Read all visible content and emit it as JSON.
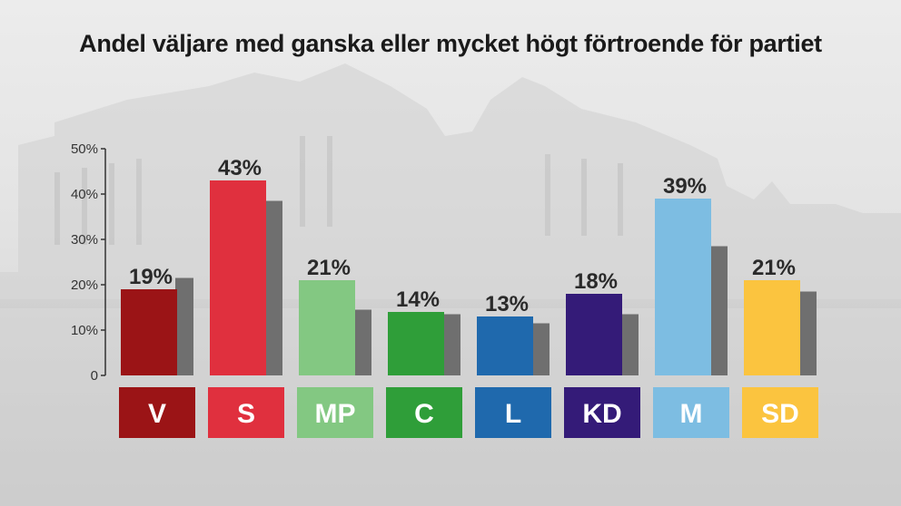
{
  "chart_data": {
    "type": "bar",
    "title": "Andel väljare med ganska eller mycket högt förtroende för partiet",
    "xlabel": "",
    "ylabel": "",
    "ylim": [
      0,
      50
    ],
    "yticks": [
      "0",
      "10%",
      "20%",
      "30%",
      "40%",
      "50%"
    ],
    "categories": [
      "V",
      "S",
      "MP",
      "C",
      "L",
      "KD",
      "M",
      "SD"
    ],
    "series": [
      {
        "values": [
          19,
          43,
          21,
          14,
          13,
          18,
          39,
          21
        ]
      },
      {
        "values": [
          21.5,
          38.5,
          14.5,
          13.5,
          11.5,
          13.5,
          28.5,
          18.5
        ]
      }
    ],
    "value_labels": [
      "19%",
      "43%",
      "21%",
      "14%",
      "13%",
      "18%",
      "39%",
      "21%"
    ],
    "colors": {
      "party": [
        "#9b1416",
        "#e0303e",
        "#83c882",
        "#2f9e39",
        "#1f69ad",
        "#341b78",
        "#7dbde2",
        "#fbc43f"
      ],
      "comparison": "#6f6f6f"
    },
    "grid": false
  }
}
